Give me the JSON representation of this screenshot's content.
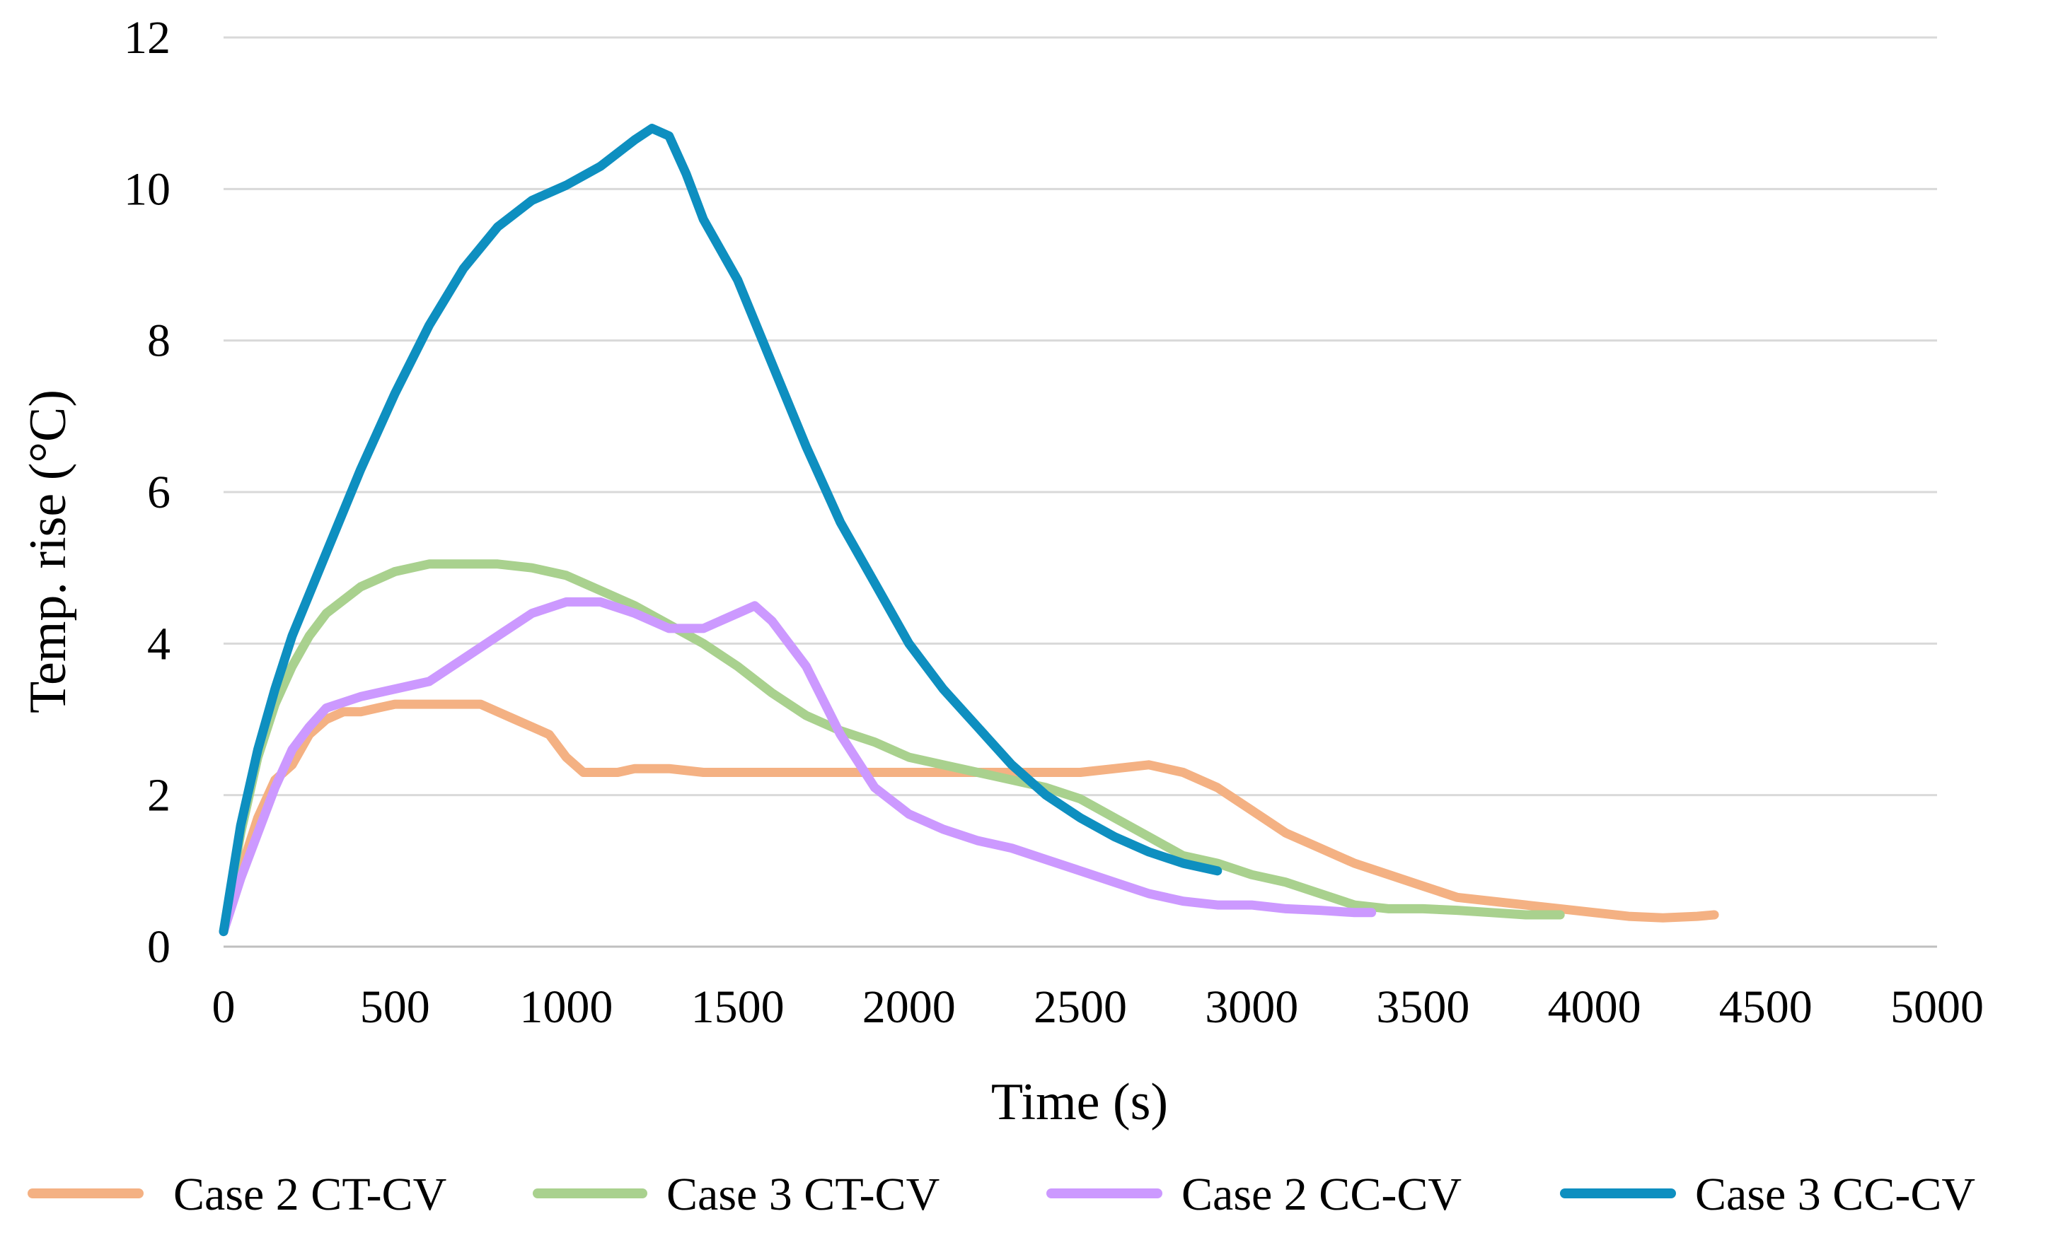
{
  "chart_data": {
    "type": "line",
    "title": "",
    "xlabel": "Time (s)",
    "ylabel": "Temp. rise (°C)",
    "xlim": [
      0,
      5000
    ],
    "ylim": [
      0,
      12
    ],
    "xticks": [
      0,
      500,
      1000,
      1500,
      2000,
      2500,
      3000,
      3500,
      4000,
      4500,
      5000
    ],
    "yticks": [
      0,
      2,
      4,
      6,
      8,
      10,
      12
    ],
    "grid": "horizontal",
    "legend_position": "bottom",
    "series": [
      {
        "name": "Case 2 CT-CV",
        "color": "#f4b183",
        "x": [
          0,
          50,
          100,
          150,
          200,
          250,
          300,
          350,
          400,
          450,
          500,
          550,
          600,
          650,
          700,
          750,
          800,
          850,
          900,
          950,
          1000,
          1050,
          1100,
          1150,
          1200,
          1300,
          1400,
          1500,
          1600,
          1700,
          1800,
          1900,
          2000,
          2100,
          2200,
          2300,
          2400,
          2500,
          2600,
          2700,
          2800,
          2900,
          3000,
          3100,
          3200,
          3300,
          3400,
          3500,
          3600,
          3700,
          3800,
          3900,
          4000,
          4100,
          4200,
          4300,
          4350
        ],
        "values": [
          0.2,
          1.0,
          1.7,
          2.2,
          2.4,
          2.8,
          3.0,
          3.1,
          3.1,
          3.15,
          3.2,
          3.2,
          3.2,
          3.2,
          3.2,
          3.2,
          3.1,
          3.0,
          2.9,
          2.8,
          2.5,
          2.3,
          2.3,
          2.3,
          2.35,
          2.35,
          2.3,
          2.3,
          2.3,
          2.3,
          2.3,
          2.3,
          2.3,
          2.3,
          2.3,
          2.3,
          2.3,
          2.3,
          2.35,
          2.4,
          2.3,
          2.1,
          1.8,
          1.5,
          1.3,
          1.1,
          0.95,
          0.8,
          0.65,
          0.6,
          0.55,
          0.5,
          0.45,
          0.4,
          0.38,
          0.4,
          0.42
        ]
      },
      {
        "name": "Case 3 CT-CV",
        "color": "#a9d18e",
        "x": [
          0,
          50,
          100,
          150,
          200,
          250,
          300,
          400,
          500,
          600,
          700,
          800,
          900,
          1000,
          1100,
          1200,
          1300,
          1400,
          1500,
          1600,
          1700,
          1800,
          1900,
          2000,
          2100,
          2200,
          2300,
          2400,
          2500,
          2600,
          2700,
          2800,
          2900,
          3000,
          3100,
          3200,
          3300,
          3400,
          3500,
          3600,
          3700,
          3800,
          3900
        ],
        "values": [
          0.2,
          1.5,
          2.5,
          3.2,
          3.7,
          4.1,
          4.4,
          4.75,
          4.95,
          5.05,
          5.05,
          5.05,
          5.0,
          4.9,
          4.7,
          4.5,
          4.25,
          4.0,
          3.7,
          3.35,
          3.05,
          2.85,
          2.7,
          2.5,
          2.4,
          2.3,
          2.2,
          2.1,
          1.95,
          1.7,
          1.45,
          1.2,
          1.1,
          0.95,
          0.85,
          0.7,
          0.55,
          0.5,
          0.5,
          0.48,
          0.45,
          0.42,
          0.42
        ]
      },
      {
        "name": "Case 2 CC-CV",
        "color": "#cc99ff",
        "x": [
          0,
          50,
          100,
          150,
          200,
          250,
          300,
          400,
          500,
          600,
          700,
          800,
          900,
          1000,
          1100,
          1200,
          1300,
          1400,
          1500,
          1550,
          1600,
          1700,
          1800,
          1900,
          2000,
          2100,
          2200,
          2300,
          2400,
          2500,
          2600,
          2700,
          2800,
          2900,
          3000,
          3100,
          3200,
          3300,
          3350
        ],
        "values": [
          0.2,
          0.9,
          1.5,
          2.1,
          2.6,
          2.9,
          3.15,
          3.3,
          3.4,
          3.5,
          3.8,
          4.1,
          4.4,
          4.55,
          4.55,
          4.4,
          4.2,
          4.2,
          4.4,
          4.5,
          4.3,
          3.7,
          2.8,
          2.1,
          1.75,
          1.55,
          1.4,
          1.3,
          1.15,
          1.0,
          0.85,
          0.7,
          0.6,
          0.55,
          0.55,
          0.5,
          0.48,
          0.45,
          0.45
        ]
      },
      {
        "name": "Case 3 CC-CV",
        "color": "#0e8fc0",
        "x": [
          0,
          50,
          100,
          150,
          200,
          300,
          400,
          500,
          600,
          700,
          800,
          900,
          1000,
          1100,
          1200,
          1250,
          1300,
          1350,
          1400,
          1500,
          1600,
          1700,
          1800,
          1900,
          2000,
          2100,
          2200,
          2300,
          2400,
          2500,
          2600,
          2700,
          2800,
          2900
        ],
        "values": [
          0.2,
          1.6,
          2.6,
          3.4,
          4.1,
          5.2,
          6.3,
          7.3,
          8.2,
          8.95,
          9.5,
          9.85,
          10.05,
          10.3,
          10.65,
          10.8,
          10.7,
          10.2,
          9.6,
          8.8,
          7.7,
          6.6,
          5.6,
          4.8,
          4.0,
          3.4,
          2.9,
          2.4,
          2.0,
          1.7,
          1.45,
          1.25,
          1.1,
          1.0
        ]
      }
    ]
  }
}
